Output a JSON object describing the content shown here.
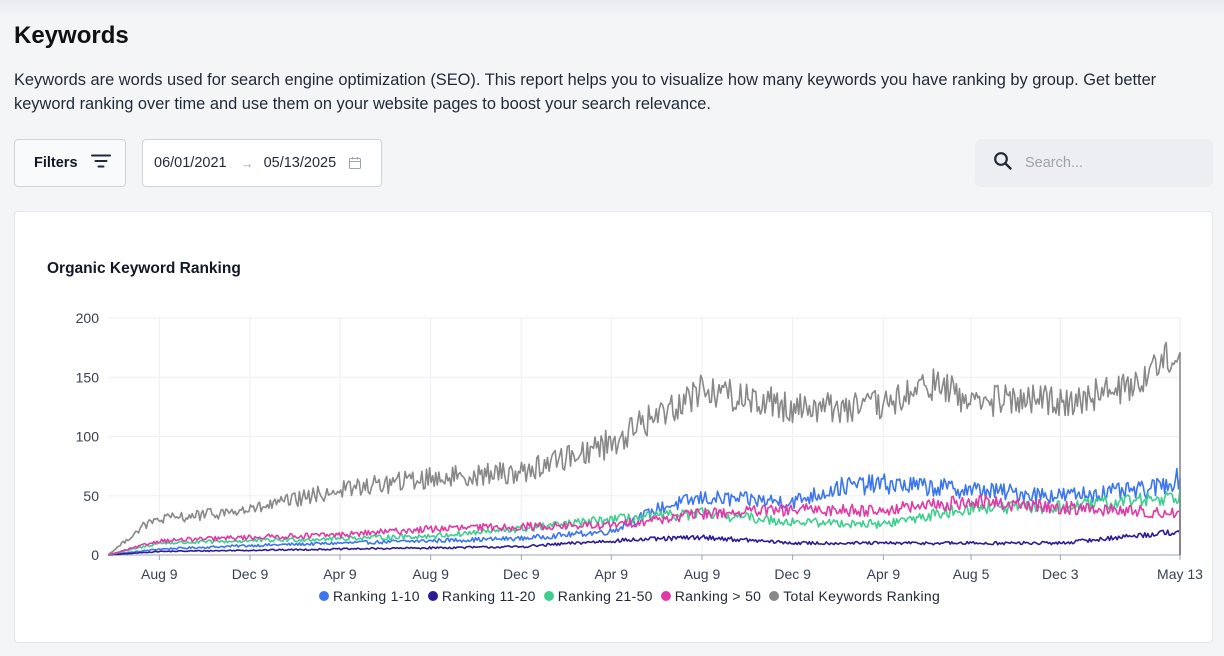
{
  "header": {
    "title": "Keywords",
    "description": "Keywords are words used for search engine optimization (SEO). This report helps you to visualize how many keywords you have ranking by group. Get better keyword ranking over time and use them on your website pages to boost your search relevance."
  },
  "toolbar": {
    "filters_label": "Filters",
    "start_date": "06/01/2021",
    "end_date": "05/13/2025",
    "search_placeholder": "Search..."
  },
  "chart_data": {
    "type": "line",
    "title": "Organic Keyword Ranking",
    "xlabel": "",
    "ylabel": "",
    "ylim": [
      0,
      200
    ],
    "yticks": [
      0,
      50,
      100,
      150,
      200
    ],
    "x_range": [
      "06/01/2021",
      "05/13/2025"
    ],
    "x_ticks": [
      {
        "label": "Aug 9",
        "date": "2021-08-09"
      },
      {
        "label": "Dec 9",
        "date": "2021-12-09"
      },
      {
        "label": "Apr 9",
        "date": "2022-04-09"
      },
      {
        "label": "Aug 9",
        "date": "2022-08-09"
      },
      {
        "label": "Dec 9",
        "date": "2022-12-09"
      },
      {
        "label": "Apr 9",
        "date": "2023-04-09"
      },
      {
        "label": "Aug 9",
        "date": "2023-08-09"
      },
      {
        "label": "Dec 9",
        "date": "2023-12-09"
      },
      {
        "label": "Apr 9",
        "date": "2024-04-09"
      },
      {
        "label": "Aug 5",
        "date": "2024-08-05"
      },
      {
        "label": "Dec 3",
        "date": "2024-12-03"
      },
      {
        "label": "May 13",
        "date": "2025-05-13"
      }
    ],
    "grid": true,
    "legend_position": "bottom",
    "series": [
      {
        "name": "Ranking 1-10",
        "color": "#3b76f0",
        "key_dates": [
          "2021-06-01",
          "2021-08-09",
          "2021-12-09",
          "2022-04-09",
          "2022-08-09",
          "2022-12-09",
          "2023-04-09",
          "2023-06-15",
          "2023-08-09",
          "2023-12-09",
          "2024-02-15",
          "2024-04-09",
          "2024-08-05",
          "2024-12-03",
          "2025-04-01",
          "2025-05-13"
        ],
        "key_values": [
          0,
          5,
          8,
          10,
          12,
          14,
          20,
          40,
          48,
          45,
          58,
          60,
          55,
          50,
          55,
          65
        ]
      },
      {
        "name": "Ranking 11-20",
        "color": "#2d1b96",
        "key_dates": [
          "2021-06-01",
          "2021-08-09",
          "2021-12-09",
          "2022-04-09",
          "2022-08-09",
          "2022-12-09",
          "2023-04-09",
          "2023-08-09",
          "2023-12-09",
          "2024-04-09",
          "2024-08-05",
          "2024-12-03",
          "2025-05-13"
        ],
        "key_values": [
          0,
          3,
          4,
          5,
          6,
          7,
          12,
          15,
          10,
          10,
          10,
          10,
          20
        ]
      },
      {
        "name": "Ranking 21-50",
        "color": "#3ecf8e",
        "key_dates": [
          "2021-06-01",
          "2021-08-09",
          "2021-12-09",
          "2022-04-09",
          "2022-08-09",
          "2022-12-09",
          "2023-04-09",
          "2023-08-09",
          "2023-12-09",
          "2024-04-09",
          "2024-08-05",
          "2024-12-03",
          "2025-05-13"
        ],
        "key_values": [
          0,
          10,
          12,
          14,
          16,
          22,
          30,
          35,
          28,
          26,
          40,
          40,
          50
        ]
      },
      {
        "name": "Ranking > 50",
        "color": "#e03aa6",
        "key_dates": [
          "2021-06-01",
          "2021-08-09",
          "2021-12-09",
          "2022-04-09",
          "2022-08-09",
          "2022-12-09",
          "2023-04-09",
          "2023-08-09",
          "2023-12-09",
          "2024-04-09",
          "2024-08-05",
          "2024-12-03",
          "2025-05-13"
        ],
        "key_values": [
          0,
          12,
          15,
          17,
          22,
          24,
          25,
          35,
          38,
          38,
          45,
          40,
          35
        ]
      },
      {
        "name": "Total Keywords Ranking",
        "color": "#888888",
        "key_dates": [
          "2021-06-01",
          "2021-07-20",
          "2021-08-09",
          "2021-12-09",
          "2022-04-09",
          "2022-08-09",
          "2022-12-09",
          "2023-04-09",
          "2023-08-09",
          "2023-12-09",
          "2024-04-09",
          "2024-06-15",
          "2024-08-05",
          "2024-12-03",
          "2025-03-01",
          "2025-05-13"
        ],
        "key_values": [
          0,
          25,
          30,
          38,
          55,
          65,
          70,
          95,
          140,
          125,
          125,
          145,
          130,
          130,
          140,
          175
        ]
      }
    ]
  }
}
